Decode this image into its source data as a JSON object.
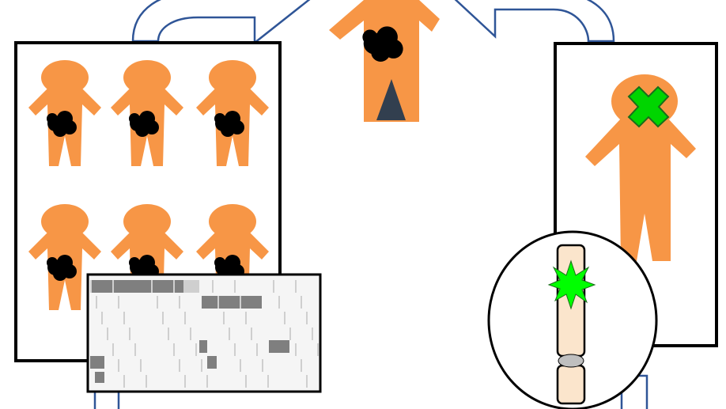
{
  "colors": {
    "background": "#ffffff",
    "figure_orange": "#f79646",
    "tumor_black": "#000000",
    "arrow_outline": "#2f5597",
    "arrow_fill": "#ffffff",
    "panel_border": "#000000",
    "cross_green": "#00d500",
    "cross_outline": "#1a6e1a",
    "chromosome_fill": "#fbe5cc",
    "chromosome_outline": "#000000",
    "centromere": "#bfbfbf",
    "mutation_star": "#00ff00",
    "triangle": "#323f4f",
    "matrix_bg": "#f5f5f5",
    "matrix_dark": "#7f7f7f",
    "matrix_light": "#cfcfcf"
  },
  "icons": {
    "person": "person-silhouette-icon",
    "tumor": "tumor-blob-icon",
    "knockout": "green-x-icon",
    "chromosome": "chromosome-icon",
    "mutation": "mutation-burst-icon"
  }
}
